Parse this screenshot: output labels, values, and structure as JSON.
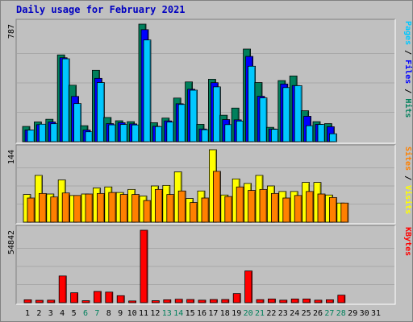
{
  "title": "Daily usage for February 2021",
  "colors": {
    "hits": "#00805c",
    "files": "#0000ff",
    "pages": "#00c8ff",
    "visits": "#ffff00",
    "sites": "#ff8000",
    "kbytes": "#ff0000",
    "weekend_day": "#00805c",
    "weekday": "#000000"
  },
  "chart_data": [
    {
      "type": "bar",
      "panel": "top",
      "ymax_label": "787",
      "ylim": [
        0,
        787
      ],
      "legend": [
        {
          "text": "Hits",
          "color": "#00805c"
        },
        {
          "text": "/",
          "color": "#000000"
        },
        {
          "text": "Files",
          "color": "#0000ff"
        },
        {
          "text": "/",
          "color": "#000000"
        },
        {
          "text": "Pages",
          "color": "#00c8ff"
        }
      ],
      "categories": [
        "1",
        "2",
        "3",
        "4",
        "5",
        "6",
        "7",
        "8",
        "9",
        "10",
        "11",
        "12",
        "13",
        "14",
        "15",
        "16",
        "17",
        "18",
        "19",
        "20",
        "21",
        "22",
        "23",
        "24",
        "25",
        "26",
        "27",
        "28",
        "29",
        "30",
        "31"
      ],
      "series": [
        {
          "name": "Hits",
          "values": [
            102,
            132,
            150,
            581,
            378,
            107,
            478,
            162,
            140,
            134,
            787,
            127,
            158,
            292,
            400,
            116,
            418,
            177,
            225,
            620,
            396,
            96,
            409,
            440,
            207,
            134,
            121,
            null,
            null,
            null,
            null
          ]
        },
        {
          "name": "Files",
          "values": [
            78,
            114,
            132,
            562,
            303,
            78,
            424,
            121,
            127,
            119,
            750,
            103,
            139,
            254,
            351,
            85,
            395,
            148,
            146,
            571,
            304,
            85,
            386,
            376,
            170,
            116,
            100,
            null,
            null,
            null,
            null
          ]
        },
        {
          "name": "Pages",
          "values": [
            78,
            117,
            120,
            555,
            255,
            66,
            396,
            113,
            115,
            112,
            681,
            101,
            131,
            249,
            345,
            80,
            367,
            114,
            138,
            505,
            293,
            83,
            362,
            375,
            107,
            115,
            53,
            null,
            null,
            null,
            null
          ]
        }
      ]
    },
    {
      "type": "bar",
      "panel": "middle",
      "ymax_label": "144",
      "ylim": [
        0,
        144
      ],
      "legend": [
        {
          "text": "Visits",
          "color": "#ffff00"
        },
        {
          "text": "/",
          "color": "#000000"
        },
        {
          "text": "Sites",
          "color": "#ff8000"
        }
      ],
      "categories": [
        "1",
        "2",
        "3",
        "4",
        "5",
        "6",
        "7",
        "8",
        "9",
        "10",
        "11",
        "12",
        "13",
        "14",
        "15",
        "16",
        "17",
        "18",
        "19",
        "20",
        "21",
        "22",
        "23",
        "24",
        "25",
        "26",
        "27",
        "28",
        "29",
        "30",
        "31"
      ],
      "series": [
        {
          "name": "Visits",
          "values": [
            55,
            93,
            56,
            84,
            53,
            56,
            68,
            70,
            59,
            65,
            52,
            72,
            73,
            100,
            47,
            62,
            144,
            54,
            86,
            77,
            93,
            72,
            61,
            61,
            79,
            79,
            54,
            38,
            null,
            null,
            null
          ]
        },
        {
          "name": "Sites",
          "values": [
            48,
            57,
            50,
            58,
            53,
            56,
            57,
            59,
            55,
            55,
            43,
            65,
            55,
            62,
            39,
            48,
            101,
            51,
            70,
            63,
            65,
            57,
            48,
            53,
            61,
            56,
            49,
            38,
            null,
            null,
            null
          ]
        }
      ]
    },
    {
      "type": "bar",
      "panel": "bottom",
      "ymax_label": "54842",
      "ylim": [
        0,
        54842
      ],
      "legend": [
        {
          "text": "KBytes",
          "color": "#ff0000"
        }
      ],
      "categories": [
        "1",
        "2",
        "3",
        "4",
        "5",
        "6",
        "7",
        "8",
        "9",
        "10",
        "11",
        "12",
        "13",
        "14",
        "15",
        "16",
        "17",
        "18",
        "19",
        "20",
        "21",
        "22",
        "23",
        "24",
        "25",
        "26",
        "27",
        "28",
        "29",
        "30",
        "31"
      ],
      "series": [
        {
          "name": "KBytes",
          "values": [
            2200,
            1800,
            1900,
            20200,
            7500,
            1500,
            8500,
            8000,
            5300,
            1300,
            55000,
            1500,
            2200,
            2600,
            2400,
            1900,
            2400,
            2400,
            6900,
            24000,
            2300,
            2800,
            1900,
            2800,
            2800,
            1900,
            2200,
            5700,
            null,
            null,
            null
          ]
        }
      ]
    }
  ]
}
